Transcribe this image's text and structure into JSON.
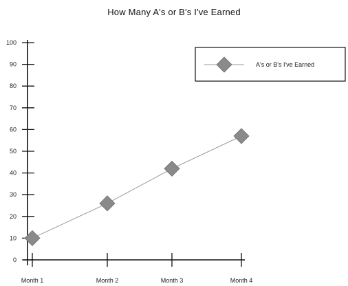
{
  "chart_data": {
    "type": "line",
    "title": "How Many A's or B's I've Earned",
    "categories": [
      "Month 1",
      "Month 2",
      "Month 3",
      "Month 4"
    ],
    "series": [
      {
        "name": "A's or B's I've Earned",
        "values": [
          10,
          26,
          42,
          57
        ],
        "color": "#8a8a8a",
        "marker": "diamond"
      }
    ],
    "ylim": [
      0,
      100
    ],
    "yticks": [
      0,
      10,
      20,
      30,
      40,
      50,
      60,
      70,
      80,
      90,
      100
    ],
    "grid": false,
    "legend_position": "top-right"
  }
}
